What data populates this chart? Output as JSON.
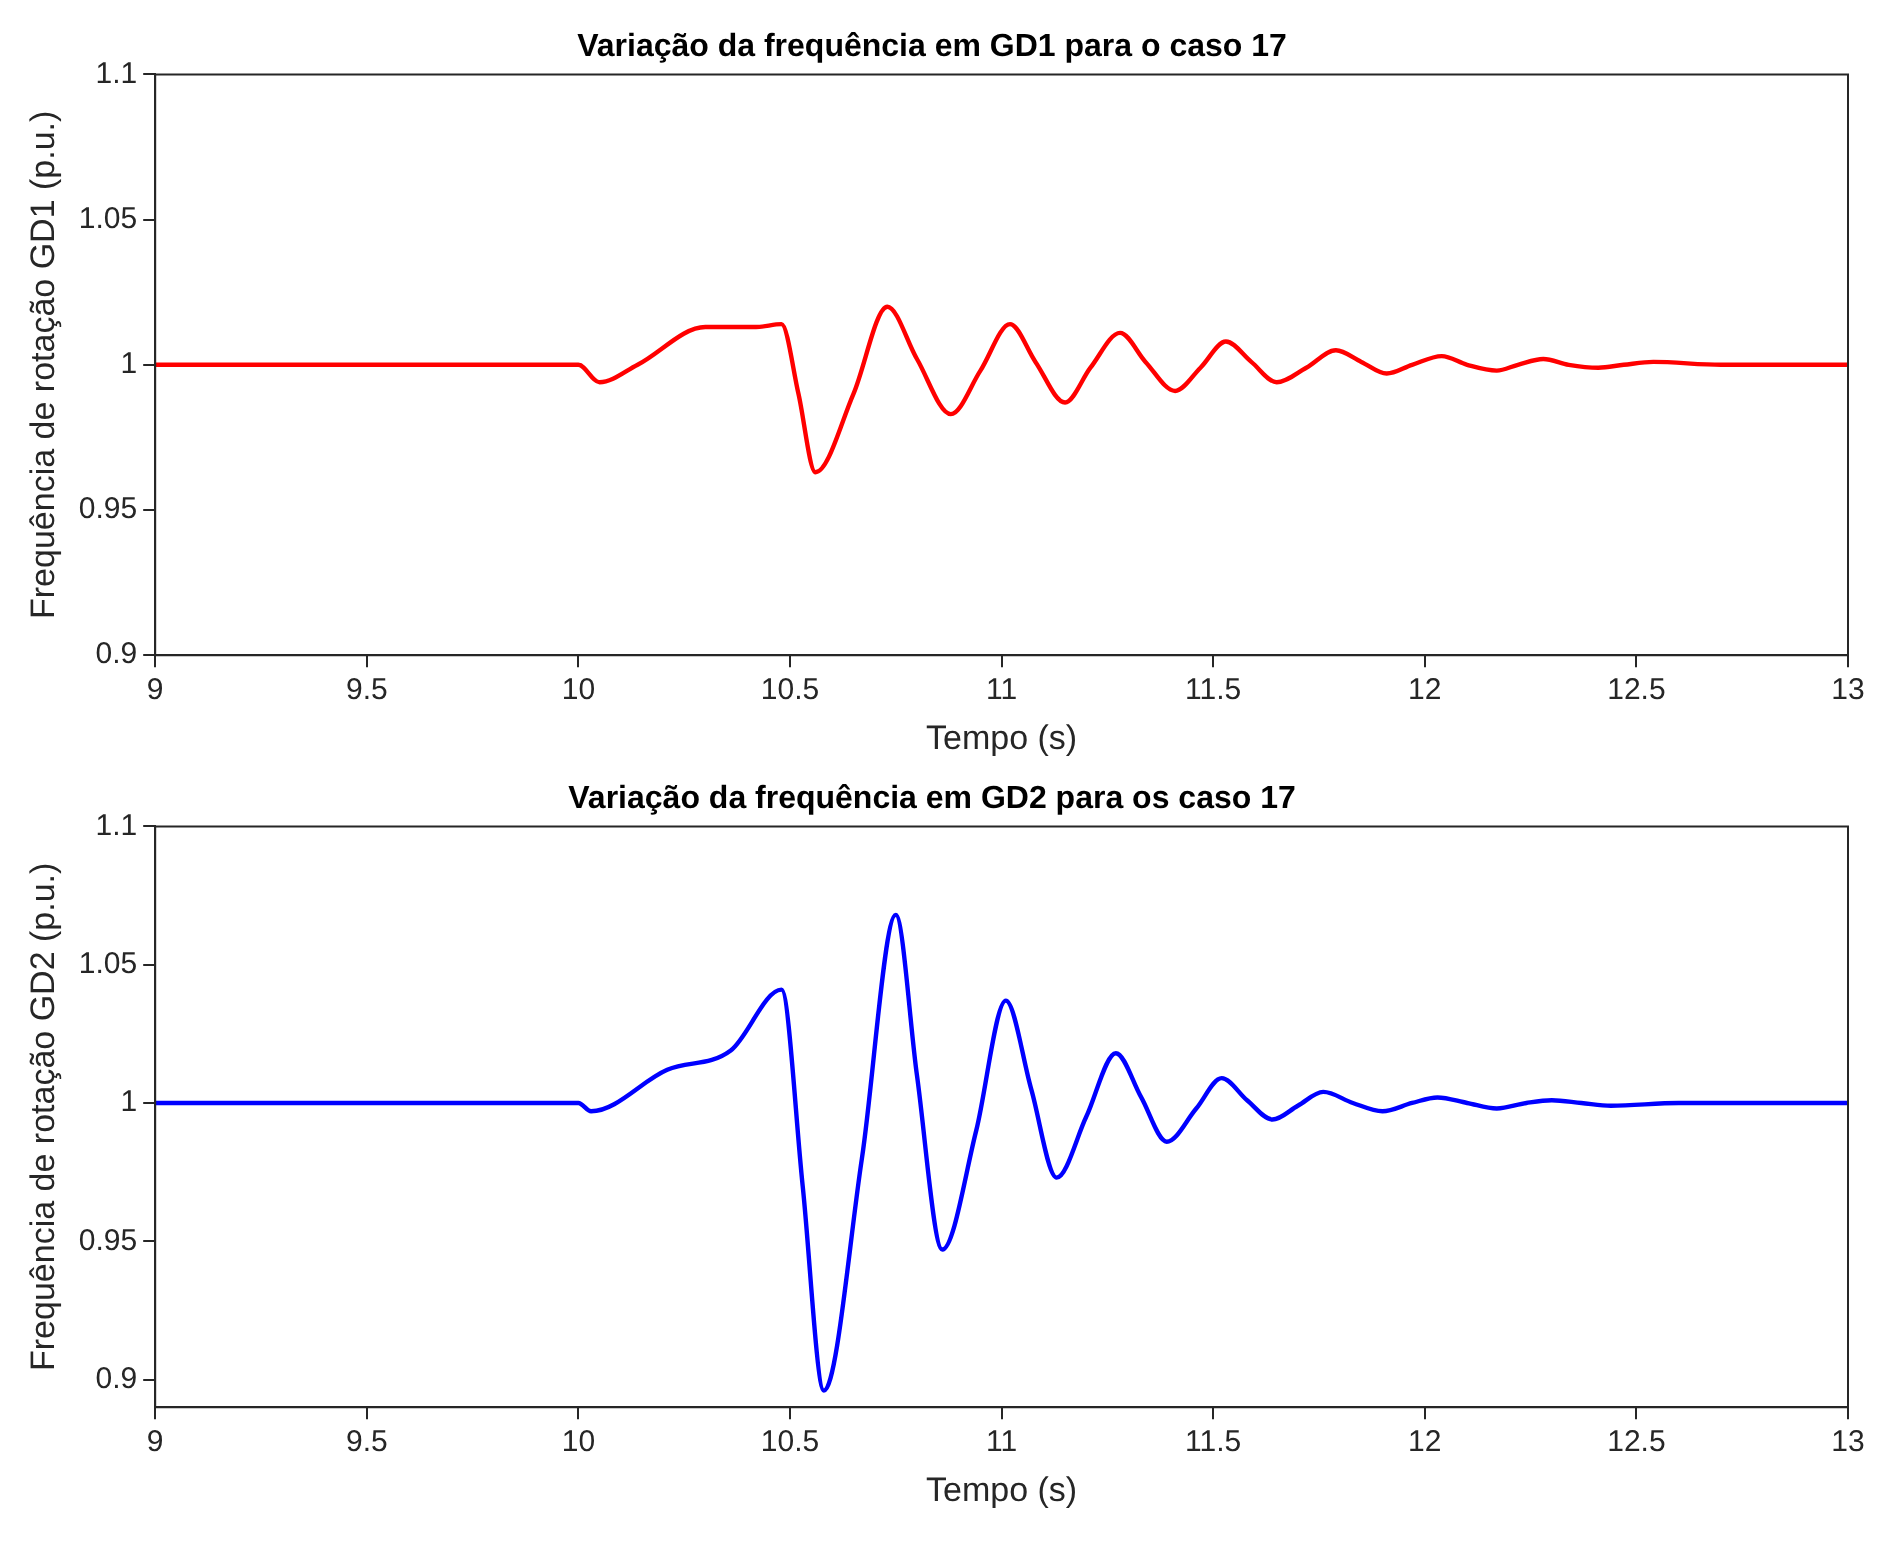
{
  "chart_data": [
    {
      "type": "line",
      "title": "Variação da frequência em GD1 para o caso 17",
      "xlabel": "Tempo (s)",
      "ylabel": "Frequência de rotação GD1 (p.u.)",
      "xlim": [
        9,
        13
      ],
      "xticks": [
        9,
        9.5,
        10,
        10.5,
        11,
        11.5,
        12,
        12.5,
        13
      ],
      "ylim": [
        0.9,
        1.1
      ],
      "yticks": [
        0.9,
        0.95,
        1,
        1.05,
        1.1
      ],
      "grid": false,
      "legend": false,
      "marker": "none",
      "line_style": "solid",
      "series": [
        {
          "color": "#ff0000",
          "x": [
            9,
            10,
            10.05,
            10.14,
            10.3,
            10.42,
            10.48,
            10.52,
            10.56,
            10.65,
            10.73,
            10.8,
            10.88,
            10.95,
            11.02,
            11.08,
            11.15,
            11.21,
            11.28,
            11.34,
            11.41,
            11.47,
            11.53,
            11.59,
            11.65,
            11.72,
            11.79,
            11.85,
            11.91,
            11.97,
            12.04,
            12.1,
            12.17,
            12.22,
            12.28,
            12.34,
            12.41,
            12.47,
            12.54,
            12.7,
            13
          ],
          "values": [
            1,
            1,
            0.994,
            1,
            1.013,
            1.013,
            1.014,
            0.99,
            0.963,
            0.99,
            1.02,
            1.002,
            0.983,
            0.998,
            1.014,
            1.001,
            0.987,
            0.999,
            1.011,
            1.001,
            0.991,
            0.999,
            1.008,
            1.001,
            0.994,
            0.999,
            1.005,
            1.001,
            0.997,
            1,
            1.003,
            1,
            0.998,
            1,
            1.002,
            1,
            0.999,
            1,
            1.001,
            1,
            1
          ]
        }
      ]
    },
    {
      "type": "line",
      "title": "Variação da frequência em GD2 para os caso 17",
      "xlabel": "Tempo (s)",
      "ylabel": "Frequência de rotação GD2 (p.u.)",
      "xlim": [
        9,
        13
      ],
      "xticks": [
        9,
        9.5,
        10,
        10.5,
        11,
        11.5,
        12,
        12.5,
        13
      ],
      "ylim": [
        0.89,
        1.1
      ],
      "yticks": [
        0.9,
        0.95,
        1,
        1.05,
        1.1
      ],
      "grid": false,
      "legend": false,
      "marker": "none",
      "line_style": "solid",
      "series": [
        {
          "color": "#0000ff",
          "x": [
            9,
            10,
            10.03,
            10.21,
            10.36,
            10.48,
            10.53,
            10.58,
            10.67,
            10.75,
            10.8,
            10.86,
            10.94,
            11.01,
            11.07,
            11.13,
            11.2,
            11.27,
            11.33,
            11.39,
            11.46,
            11.52,
            11.58,
            11.64,
            11.7,
            11.76,
            11.83,
            11.9,
            11.97,
            12.03,
            12.1,
            12.17,
            12.24,
            12.3,
            12.37,
            12.44,
            12.6,
            13
          ],
          "values": [
            1,
            1,
            0.997,
            1.012,
            1.019,
            1.041,
            0.97,
            0.896,
            0.98,
            1.068,
            1.01,
            0.947,
            0.99,
            1.037,
            1.005,
            0.973,
            0.995,
            1.018,
            1.002,
            0.986,
            0.998,
            1.009,
            1.001,
            0.994,
            0.999,
            1.004,
            1,
            0.997,
            1,
            1.002,
            1,
            0.998,
            1,
            1.001,
            1,
            0.999,
            1,
            1
          ]
        }
      ]
    }
  ]
}
